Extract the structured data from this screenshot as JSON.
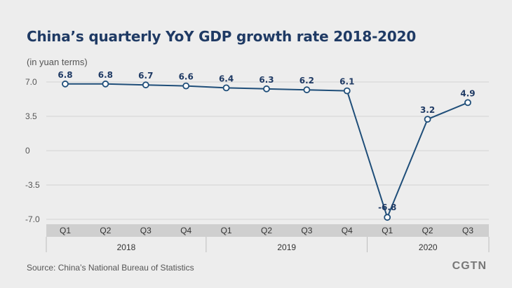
{
  "header": {
    "title": "China’s quarterly YoY GDP growth rate 2018-2020",
    "unit_note": "(in yuan terms)"
  },
  "footer": {
    "source": "Source: China’s National Bureau of Statistics",
    "brand": "CGTN"
  },
  "colors": {
    "line": "#1f4e79",
    "marker_fill": "#ffffff",
    "text_dark": "#1f3a64",
    "grid": "#d4d4d4",
    "axis_band": "#cfcfcf"
  },
  "chart_data": {
    "type": "line",
    "title": "China’s quarterly YoY GDP growth rate 2018-2020",
    "ylabel": "(in yuan terms)",
    "xlabel": "",
    "ylim": [
      -7.0,
      7.0
    ],
    "yticks": [
      7.0,
      3.5,
      0,
      -3.5,
      -7.0
    ],
    "ytick_labels": [
      "7.0",
      "3.5",
      "0",
      "-3.5",
      "-7.0"
    ],
    "grid": true,
    "categories": [
      "Q1",
      "Q2",
      "Q3",
      "Q4",
      "Q1",
      "Q2",
      "Q3",
      "Q4",
      "Q1",
      "Q2",
      "Q3"
    ],
    "groups": [
      {
        "label": "2018",
        "count": 4
      },
      {
        "label": "2019",
        "count": 4
      },
      {
        "label": "2020",
        "count": 3
      }
    ],
    "series": [
      {
        "name": "YoY GDP growth rate",
        "values": [
          6.8,
          6.8,
          6.7,
          6.6,
          6.4,
          6.3,
          6.2,
          6.1,
          -6.8,
          3.2,
          4.9
        ],
        "labels": [
          "6.8",
          "6.8",
          "6.7",
          "6.6",
          "6.4",
          "6.3",
          "6.2",
          "6.1",
          "-6.8",
          "3.2",
          "4.9"
        ]
      }
    ]
  }
}
